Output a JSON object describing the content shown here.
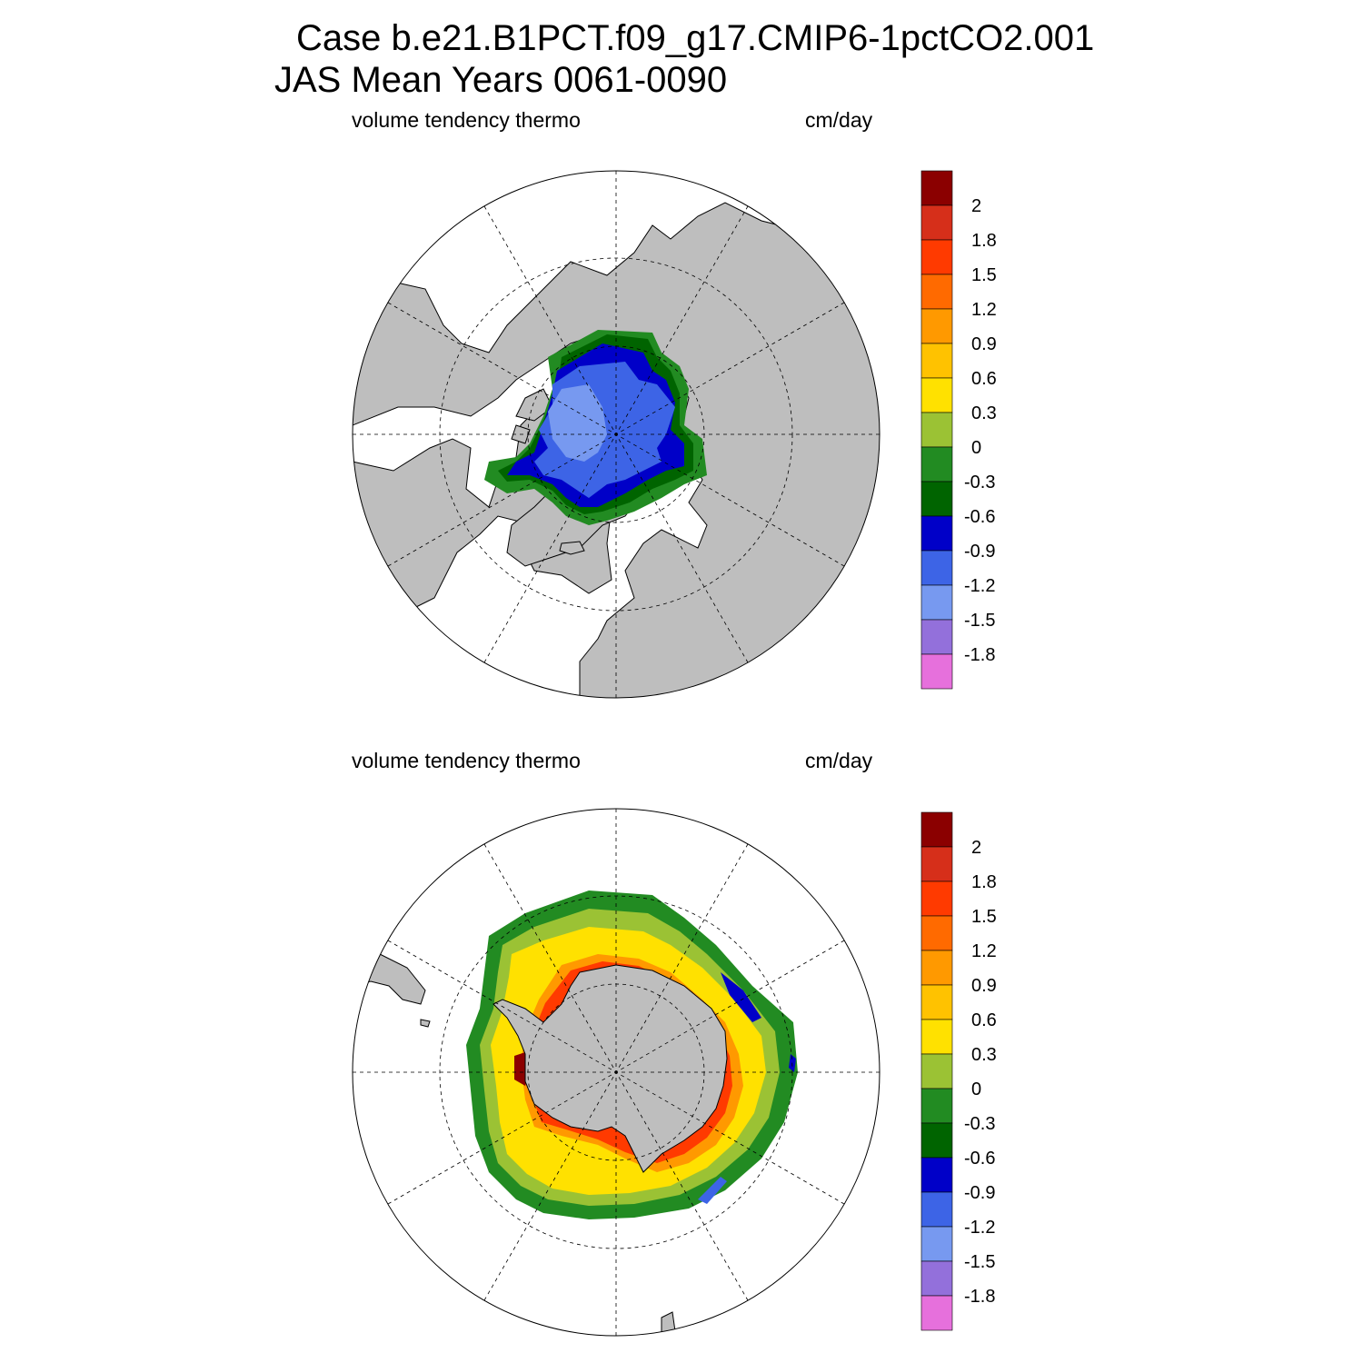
{
  "figure": {
    "title_line1": "Case b.e21.B1PCT.f09_g17.CMIP6-1pctCO2.001",
    "title_line2": "JAS Mean   Years 0061-0090"
  },
  "panels": [
    {
      "id": "north",
      "left_label": "volume tendency thermo",
      "right_label": "cm/day"
    },
    {
      "id": "south",
      "left_label": "volume tendency thermo",
      "right_label": "cm/day"
    }
  ],
  "colorbar": {
    "labels": [
      "2",
      "1.8",
      "1.5",
      "1.2",
      "0.9",
      "0.6",
      "0.3",
      "0",
      "-0.3",
      "-0.6",
      "-0.9",
      "-1.2",
      "-1.5",
      "-1.8"
    ],
    "colors": [
      "#8b0000",
      "#d62f1a",
      "#ff3a00",
      "#ff6a00",
      "#ff9900",
      "#ffc200",
      "#ffe100",
      "#9bc234",
      "#228b22",
      "#006400",
      "#0000c8",
      "#3d64e6",
      "#7799f0",
      "#9370db",
      "#e670dc"
    ]
  },
  "colors": {
    "land": "#bebebe",
    "ocean": "#ffffff",
    "coast": "#000000",
    "grid": "#000000"
  }
}
